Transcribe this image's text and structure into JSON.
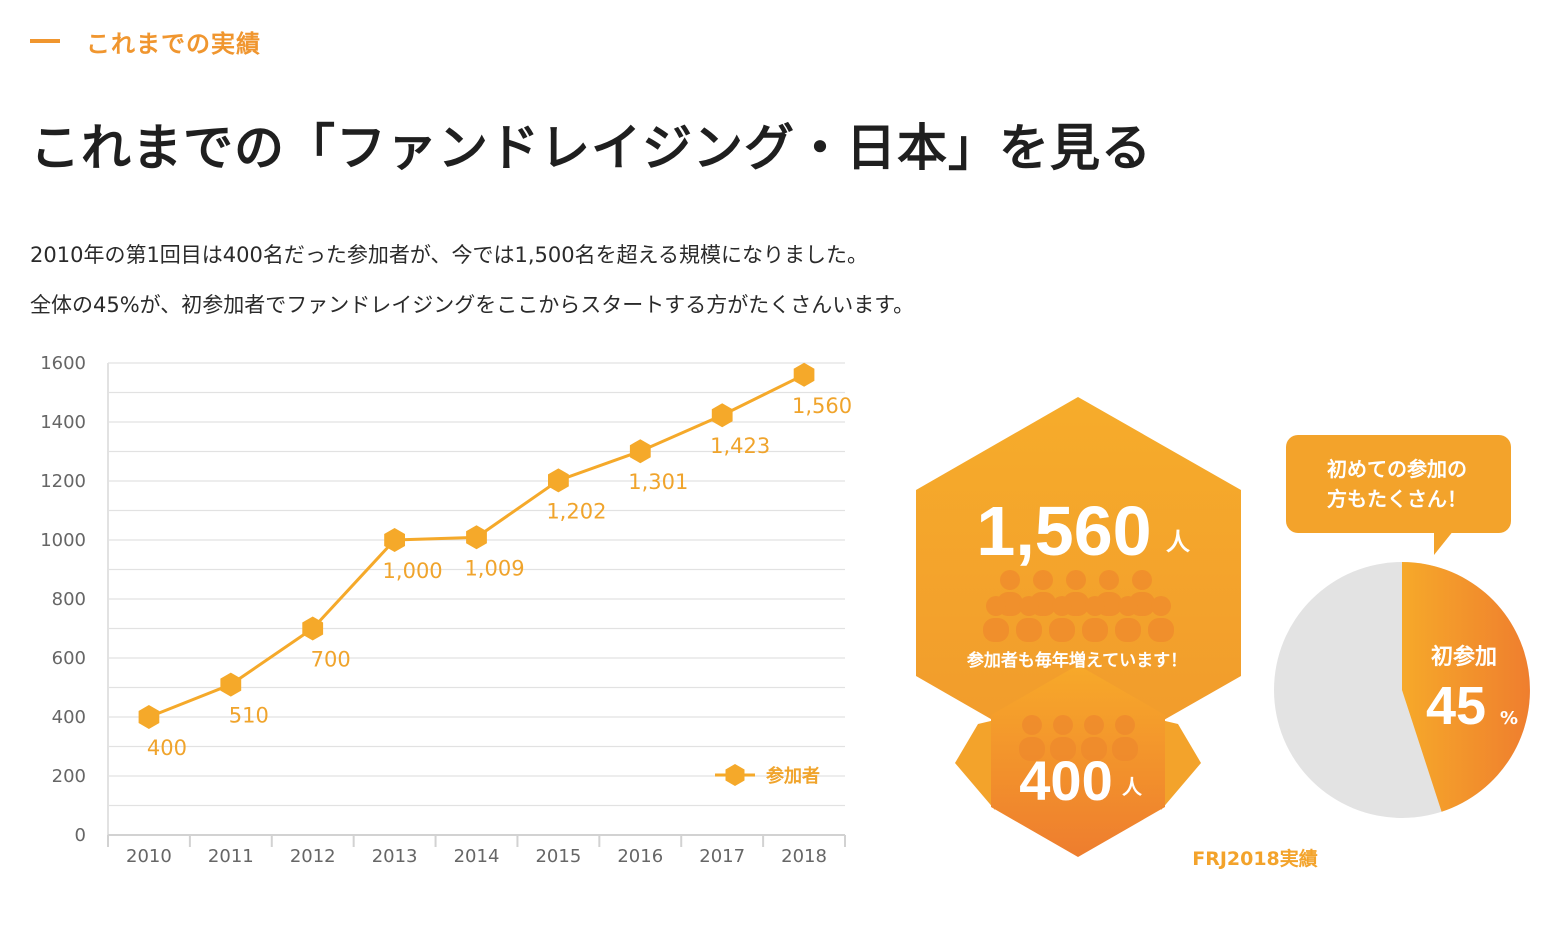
{
  "section_label": "これまでの実績",
  "page_title": "これまでの「ファンドレイジング・日本」を見る",
  "description": [
    "2010年の第1回目は400名だった参加者が、今では1,500名を超える規模になりました。",
    "全体の45%が、初参加者でファンドレイジングをここからスタートする方がたくさんいます。"
  ],
  "colors": {
    "accent": "#f0962f",
    "series": "#f5a92a",
    "pie_rest": "#e3e3e3",
    "grid": "#e2e2e2"
  },
  "chart_data": {
    "type": "line",
    "categories": [
      "2010",
      "2011",
      "2012",
      "2013",
      "2014",
      "2015",
      "2016",
      "2017",
      "2018"
    ],
    "series": [
      {
        "name": "参加者",
        "values": [
          400,
          510,
          700,
          1000,
          1009,
          1202,
          1301,
          1423,
          1560
        ]
      }
    ],
    "data_labels": [
      "400",
      "510",
      "700",
      "1,000",
      "1,009",
      "1,202",
      "1,301",
      "1,423",
      "1,560"
    ],
    "y_ticks": [
      "0",
      "200",
      "400",
      "600",
      "800",
      "1000",
      "1200",
      "1400",
      "1600"
    ],
    "ylim": [
      0,
      1600
    ],
    "grid": true,
    "legend_position": "bottom-right",
    "legend_label": "参加者"
  },
  "infographic": {
    "total_number": "1,560",
    "total_unit": "人",
    "growth_caption": "参加者も毎年増えています！",
    "start_number": "400",
    "start_unit": "人",
    "bubble_line1": "初めての参加の",
    "bubble_line2": "方もたくさん！",
    "pie": {
      "first_time_percent": 45,
      "label": "初参加",
      "value": "45",
      "unit": "%"
    },
    "footnote": "FRJ2018実績"
  }
}
